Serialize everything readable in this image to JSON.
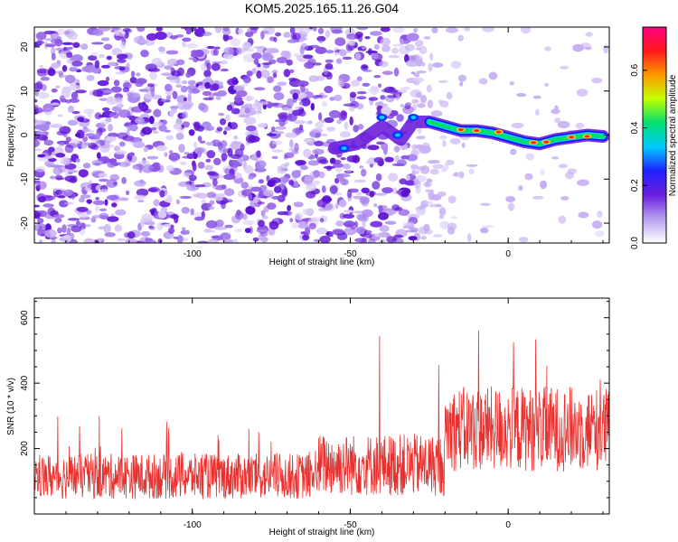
{
  "title": "KOM5.2025.165.11.26.G04",
  "chart_data": [
    {
      "type": "heatmap",
      "xlabel": "Height of straight line (km)",
      "ylabel": "Frequency (Hz)",
      "xlim": [
        -150,
        32
      ],
      "ylim": [
        -24.5,
        24.5
      ],
      "xticks": [
        -100,
        -50,
        0
      ],
      "yticks": [
        -20,
        -10,
        0,
        10,
        20
      ],
      "colorbar": {
        "label": "Normalized spectral amplitude",
        "range": [
          0.0,
          0.75
        ],
        "ticks": [
          "0.0",
          "0.2",
          "0.4",
          "0.6"
        ],
        "colormap": [
          "#ffffff",
          "#b8a0f0",
          "#6b1fdc",
          "#2020ff",
          "#00c8ff",
          "#00e070",
          "#c0ff00",
          "#ff9900",
          "#ff1a1a",
          "#ff0080"
        ]
      },
      "ridge": {
        "description_points_x": [
          -55,
          -48,
          -40,
          -34,
          -30,
          -25,
          -20,
          -15,
          -10,
          -5,
          0,
          5,
          10,
          15,
          20,
          25,
          30
        ],
        "description_points_y": [
          -3,
          -2,
          2,
          -1,
          3,
          3,
          2,
          1,
          1,
          0.5,
          -0.5,
          -1.5,
          -2,
          -1,
          -0.5,
          0,
          -0.3
        ]
      }
    },
    {
      "type": "line",
      "xlabel": "Height of straight line (km)",
      "ylabel": "SNR (10 * v/v)",
      "xlim": [
        -150,
        32
      ],
      "ylim": [
        0,
        660
      ],
      "xticks": [
        -100,
        -50,
        0
      ],
      "yticks": [
        200,
        400,
        600
      ],
      "series_color": "#e8302e",
      "segments": [
        {
          "x_range": [
            -150,
            -60
          ],
          "mean": 115,
          "spread": 70,
          "peak": 300
        },
        {
          "x_range": [
            -60,
            -20
          ],
          "mean": 150,
          "spread": 95,
          "peak": 600
        },
        {
          "x_range": [
            -20,
            32
          ],
          "mean": 260,
          "spread": 130,
          "peak": 660
        }
      ]
    }
  ]
}
